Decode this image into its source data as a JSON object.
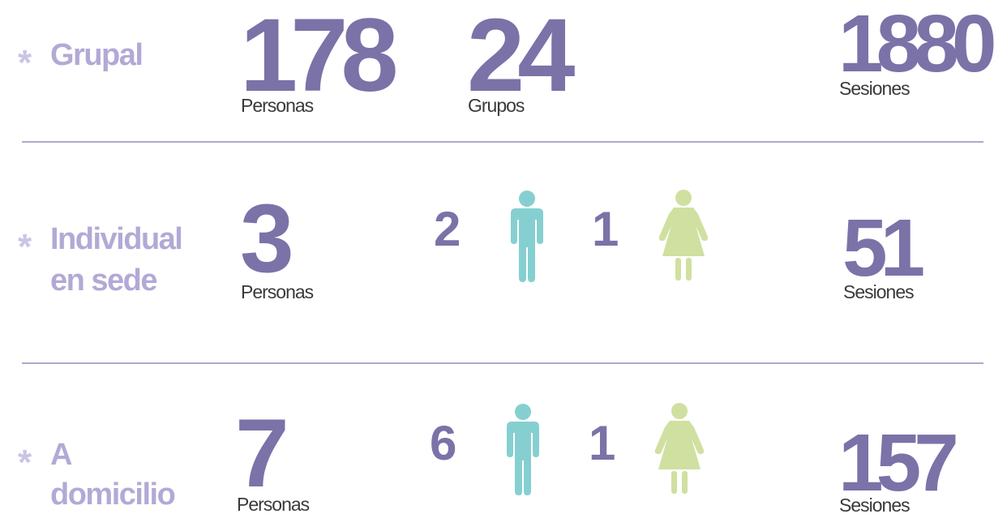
{
  "rows": [
    {
      "label": [
        "Grupal"
      ],
      "persons": {
        "value": 178,
        "unit": "Personas"
      },
      "groups": {
        "value": 24,
        "unit": "Grupos"
      },
      "sessions": {
        "value": 1880,
        "unit": "Sesiones"
      }
    },
    {
      "label": [
        "Individual",
        "en sede"
      ],
      "persons": {
        "value": 3,
        "unit": "Personas"
      },
      "men": 2,
      "women": 1,
      "sessions": {
        "value": 51,
        "unit": "Sesiones"
      }
    },
    {
      "label": [
        "A",
        "domicilio"
      ],
      "persons": {
        "value": 7,
        "unit": "Personas"
      },
      "men": 6,
      "women": 1,
      "sessions": {
        "value": 157,
        "unit": "Sesiones"
      }
    }
  ]
}
